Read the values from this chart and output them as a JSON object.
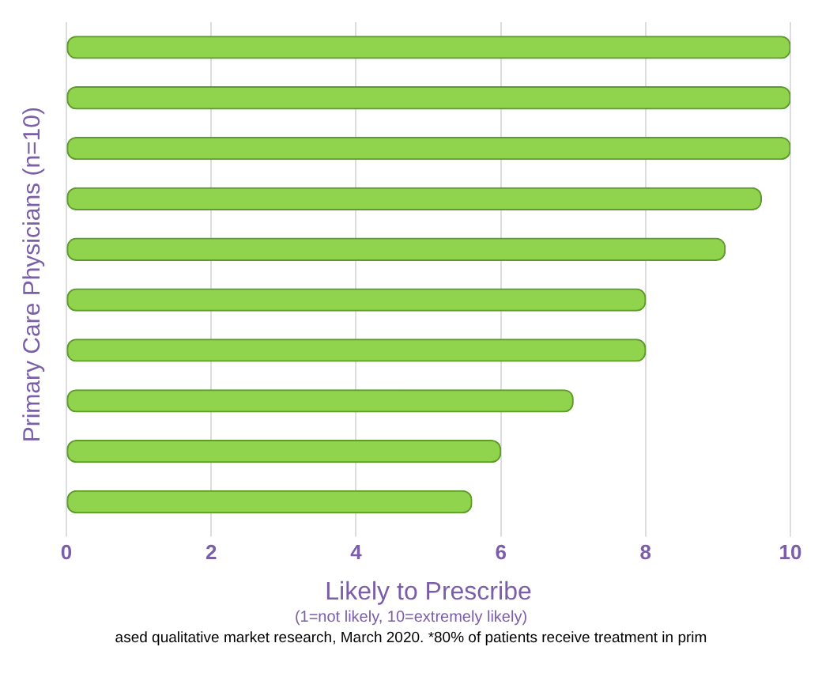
{
  "chart_data": {
    "type": "bar",
    "orientation": "horizontal",
    "categories": [
      null,
      null,
      null,
      null,
      null,
      null,
      null,
      null,
      null,
      null
    ],
    "values": [
      10,
      10,
      10,
      9.6,
      9.1,
      8,
      8,
      7,
      6,
      5.6
    ],
    "color": "#8fd44c",
    "xlabel": "Likely to Prescribe",
    "ylabel": "Primary Care Physicians (n=10)",
    "xlim": [
      0,
      10
    ],
    "xticks": [
      0,
      2,
      4,
      6,
      8,
      10
    ],
    "grid": "x",
    "annotations": [
      "(1=not likely, 10=extremely likely)",
      "ased qualitative market research, March 2020. *80% of patients receive treatment in prim"
    ]
  }
}
